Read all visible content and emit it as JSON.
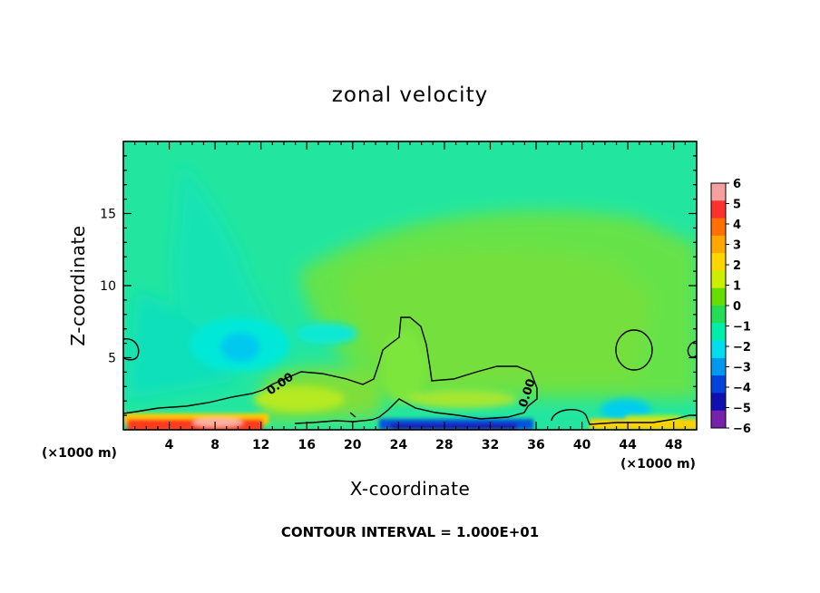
{
  "chart_data": {
    "type": "heatmap",
    "title": "zonal velocity",
    "xlabel": "X-coordinate",
    "ylabel": "Z-coordinate",
    "x_unit": "(×1000 m)",
    "z_unit": "(×1000 m)",
    "xlim": [
      0,
      50
    ],
    "ylim": [
      0,
      20
    ],
    "x_ticks": [
      "4",
      "8",
      "12",
      "16",
      "20",
      "24",
      "28",
      "32",
      "36",
      "40",
      "44",
      "48"
    ],
    "y_ticks": [
      "5",
      "10",
      "15"
    ],
    "colorbar": {
      "levels": [
        "6",
        "5",
        "4",
        "3",
        "2",
        "1",
        "0",
        "−1",
        "−2",
        "−3",
        "−4",
        "−5",
        "−6"
      ],
      "colors": [
        "#f5a0a0",
        "#ff3030",
        "#ff7000",
        "#ffa800",
        "#ffd700",
        "#ccee00",
        "#66dd00",
        "#22dd55",
        "#00eeaa",
        "#00ddee",
        "#0099ee",
        "#0044dd",
        "#1010b0",
        "#7722aa"
      ]
    },
    "contour_labels": [
      "0.00",
      "0.00"
    ],
    "contour_interval_text": "CONTOUR INTERVAL = 1.000E+01",
    "background": "#22e6a0"
  }
}
